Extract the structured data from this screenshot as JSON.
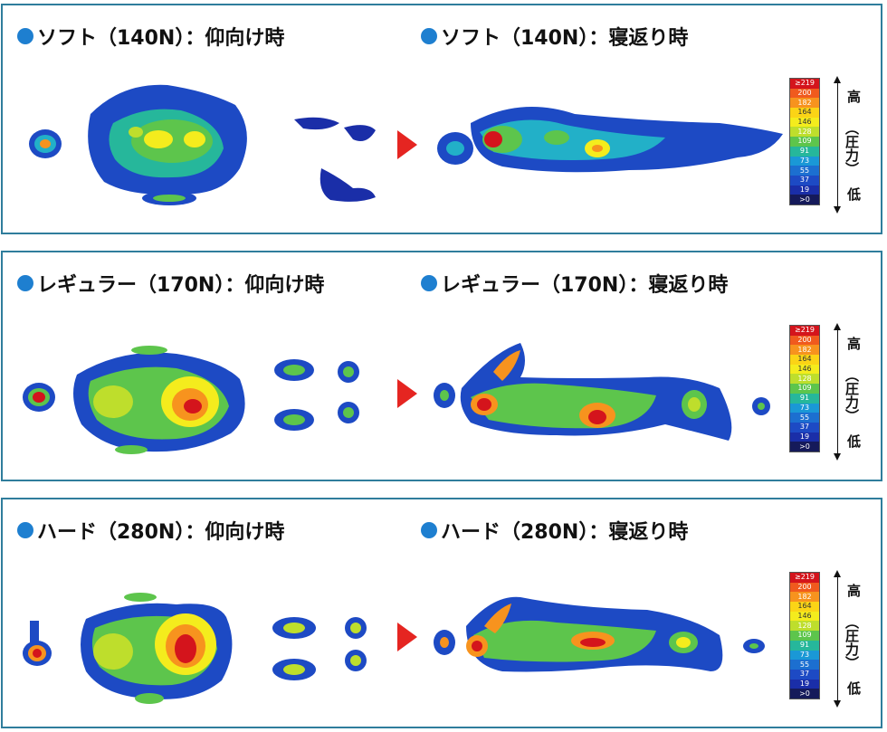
{
  "colors": {
    "border": "#2f7d9c",
    "dot": "#1e7fd0",
    "arrow": "#e52521",
    "scale": [
      "#d4141c",
      "#f05a1e",
      "#f7931e",
      "#fbd416",
      "#f4ec1d",
      "#bede2c",
      "#5dc54c",
      "#26b79b",
      "#22b0c8",
      "#1a98d6",
      "#1c6fd0",
      "#1d4ac4",
      "#1a2ea8",
      "#16268a",
      "#151d70",
      "#151a5a"
    ]
  },
  "legend": {
    "values": [
      "219",
      "200",
      "182",
      "164",
      "146",
      "128",
      "109",
      "91",
      "73",
      "55",
      "37",
      "19",
      "0"
    ],
    "top_mark": "≥219",
    "bottom_mark": ">0",
    "high": "高",
    "mid": "（圧力）",
    "low": "低"
  },
  "panels": [
    {
      "left_title": "ソフト（140N）：仰向け時",
      "right_title": "ソフト（140N）：寝返り時",
      "firmness": "soft"
    },
    {
      "left_title": "レギュラー（170N）：仰向け時",
      "right_title": "レギュラー（170N）：寝返り時",
      "firmness": "regular"
    },
    {
      "left_title": "ハード（280N）：仰向け時",
      "right_title": "ハード（280N）：寝返り時",
      "firmness": "hard"
    }
  ]
}
